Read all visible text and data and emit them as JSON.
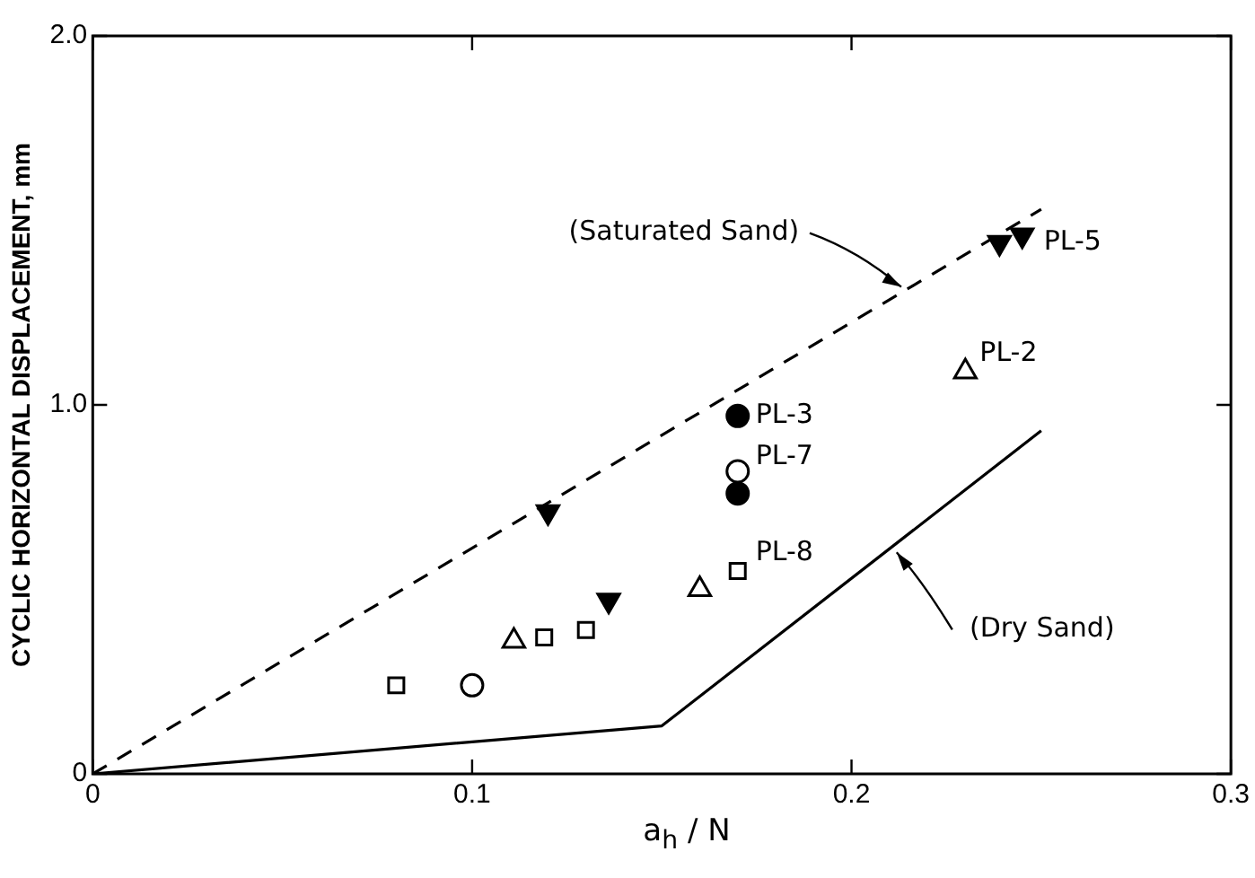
{
  "chart_data": {
    "type": "scatter",
    "xlabel": "a$_{h}$ / N",
    "ylabel": "CYCLIC HORIZONTAL DISPLACEMENT, mm",
    "xlim": [
      0,
      0.3
    ],
    "xticks": [
      0,
      0.1,
      0.2,
      0.3
    ],
    "ylim": [
      0,
      2
    ],
    "yticks": [
      0,
      {
        "value": 1,
        "label": "1.0"
      },
      {
        "value": 2,
        "label": "2.0"
      }
    ],
    "grid": false,
    "legend": false,
    "series": [
      {
        "color": "#000000",
        "marker": "triangle",
        "x": [
          0.12,
          0.136,
          0.239,
          0.245
        ],
        "values": [
          0.71,
          0.47,
          1.44,
          1.46
        ]
      },
      {
        "color": "#000000",
        "marker": "triangle",
        "x": [
          0.111,
          0.16,
          0.23
        ],
        "values": [
          0.36,
          0.5,
          1.09
        ]
      },
      {
        "color": "#000000",
        "marker": "square",
        "x": [
          0.08,
          0.119,
          0.13,
          0.17
        ],
        "values": [
          0.24,
          0.37,
          0.39,
          0.55
        ]
      },
      {
        "color": "#000000",
        "marker": "circle",
        "x": [
          0.1,
          0.17
        ],
        "values": [
          0.24,
          0.82
        ]
      },
      {
        "color": "#000000",
        "marker": "circle",
        "x": [
          0.17,
          0.17
        ],
        "values": [
          0.97,
          0.76
        ]
      },
      {
        "type": "line",
        "color": "#000000",
        "marker": "none",
        "line_style": "dashed",
        "x": [
          0,
          0.25
        ],
        "values": [
          0,
          1.53
        ]
      },
      {
        "type": "line",
        "color": "#000000",
        "marker": "none",
        "line_style": "solid",
        "x": [
          0,
          0.15,
          0.25
        ],
        "values": [
          0,
          0.13,
          0.93
        ]
      }
    ],
    "annotations": [
      {
        "text": "PL-5",
        "x": 0.245,
        "y": 1.46
      },
      {
        "text": "PL-2",
        "x": 0.23,
        "y": 1.09
      },
      {
        "text": "PL-3",
        "x": 0.17,
        "y": 0.97
      },
      {
        "text": "PL-7",
        "x": 0.17,
        "y": 0.82
      },
      {
        "text": "PL-8",
        "x": 0.17,
        "y": 0.55
      },
      {
        "text": "(Saturated Sand)",
        "x": 0.215,
        "y": 1.31
      },
      {
        "text": "(Dry Sand)",
        "x": 0.21,
        "y": 0.61
      }
    ]
  }
}
